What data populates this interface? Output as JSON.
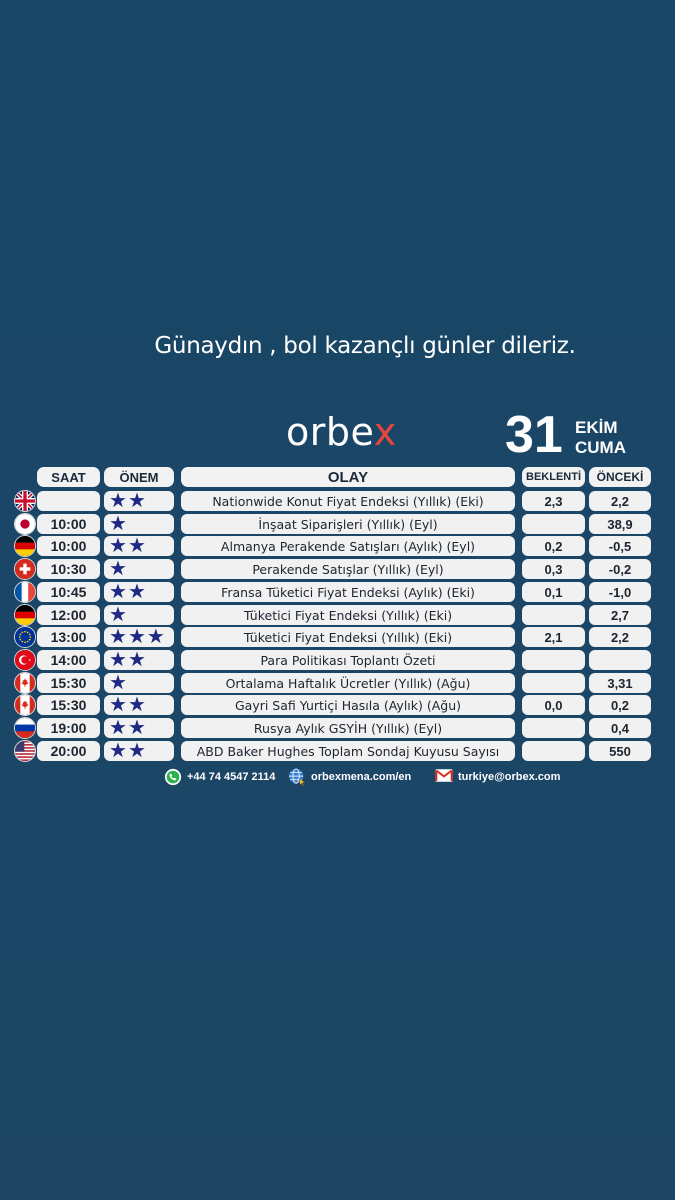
{
  "greeting": "Günaydın , bol kazançlı günler dileriz.",
  "brand": {
    "text_main": "orbe",
    "text_accent": "x"
  },
  "date": {
    "day": "31",
    "month": "EKİM",
    "weekday": "CUMA"
  },
  "headers": {
    "time": "SAAT",
    "importance": "ÖNEM",
    "event": "OLAY",
    "expected": "BEKLENTİ",
    "previous": "ÖNCEKİ"
  },
  "rows": [
    {
      "flag": "uk-flag-icon",
      "time": "",
      "stars": 2,
      "event": "Nationwide Konut Fiyat Endeksi (Yıllık) (Eki)",
      "expected": "2,3",
      "previous": "2,2"
    },
    {
      "flag": "japan-flag-icon",
      "time": "10:00",
      "stars": 1,
      "event": "İnşaat Siparişleri (Yıllık) (Eyl)",
      "expected": "",
      "previous": "38,9"
    },
    {
      "flag": "germany-flag-icon",
      "time": "10:00",
      "stars": 2,
      "event": "Almanya Perakende Satışları (Aylık) (Eyl)",
      "expected": "0,2",
      "previous": "-0,5"
    },
    {
      "flag": "switzerland-flag-icon",
      "time": "10:30",
      "stars": 1,
      "event": "Perakende Satışlar (Yıllık) (Eyl)",
      "expected": "0,3",
      "previous": "-0,2"
    },
    {
      "flag": "france-flag-icon",
      "time": "10:45",
      "stars": 2,
      "event": "Fransa Tüketici Fiyat Endeksi (Aylık) (Eki)",
      "expected": "0,1",
      "previous": "-1,0"
    },
    {
      "flag": "germany-flag-icon",
      "time": "12:00",
      "stars": 1,
      "event": "Tüketici Fiyat Endeksi (Yıllık) (Eki)",
      "expected": "",
      "previous": "2,7"
    },
    {
      "flag": "eu-flag-icon",
      "time": "13:00",
      "stars": 3,
      "event": "Tüketici Fiyat Endeksi (Yıllık) (Eki)",
      "expected": "2,1",
      "previous": "2,2"
    },
    {
      "flag": "turkey-flag-icon",
      "time": "14:00",
      "stars": 2,
      "event": "Para Politikası Toplantı Özeti",
      "expected": "",
      "previous": ""
    },
    {
      "flag": "canada-flag-icon",
      "time": "15:30",
      "stars": 1,
      "event": "Ortalama Haftalık Ücretler (Yıllık) (Ağu)",
      "expected": "",
      "previous": "3,31"
    },
    {
      "flag": "canada-flag-icon",
      "time": "15:30",
      "stars": 2,
      "event": "Gayri Safi Yurtiçi Hasıla (Aylık) (Ağu)",
      "expected": "0,0",
      "previous": "0,2"
    },
    {
      "flag": "russia-flag-icon",
      "time": "19:00",
      "stars": 2,
      "event": "Rusya Aylık GSYİH (Yıllık) (Eyl)",
      "expected": "",
      "previous": "0,4"
    },
    {
      "flag": "usa-flag-icon",
      "time": "20:00",
      "stars": 2,
      "event": "ABD Baker Hughes Toplam Sondaj Kuyusu Sayısı",
      "expected": "",
      "previous": "550"
    }
  ],
  "footer": {
    "phone": {
      "icon": "whatsapp-icon",
      "text": "+44 74 4547 2114"
    },
    "web": {
      "icon": "globe-icon",
      "text": "orbexmena.com/en"
    },
    "mail": {
      "icon": "mail-icon",
      "text": "turkiye@orbex.com"
    }
  },
  "colors": {
    "background": "#1b4667",
    "star": "#1e2a83",
    "accent": "#e8453c",
    "cell": "#f1f1f1"
  }
}
